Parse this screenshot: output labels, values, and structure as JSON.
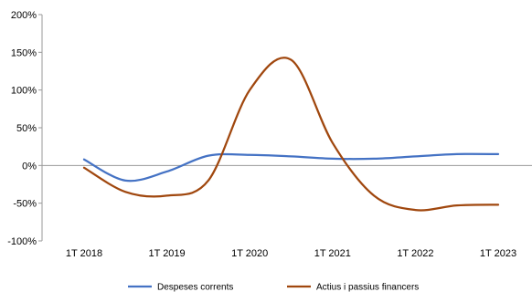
{
  "chart_data": {
    "type": "line",
    "title": "",
    "xlabel": "",
    "ylabel": "",
    "categories": [
      "1T 2018",
      "1T 2019",
      "1T 2020",
      "1T 2021",
      "1T 2022",
      "1T 2023"
    ],
    "y_ticks": [
      "200%",
      "150%",
      "100%",
      "50%",
      "0%",
      "-50%",
      "-100%"
    ],
    "ylim": [
      -100,
      200
    ],
    "ytick_step": 50,
    "grid": false,
    "legend_position": "bottom",
    "x": [
      0,
      0.5,
      1,
      1.5,
      2,
      2.5,
      3,
      3.5,
      4,
      4.5,
      5
    ],
    "series": [
      {
        "name": "Despeses corrents",
        "color": "#4472C4",
        "values": [
          8,
          -20,
          -8,
          13,
          14,
          12,
          9,
          9,
          12,
          15,
          15
        ]
      },
      {
        "name": "Actius i passius financers",
        "color": "#A0470E",
        "values": [
          -3,
          -35,
          -40,
          -20,
          100,
          140,
          30,
          -40,
          -59,
          -53,
          -52
        ]
      }
    ]
  }
}
